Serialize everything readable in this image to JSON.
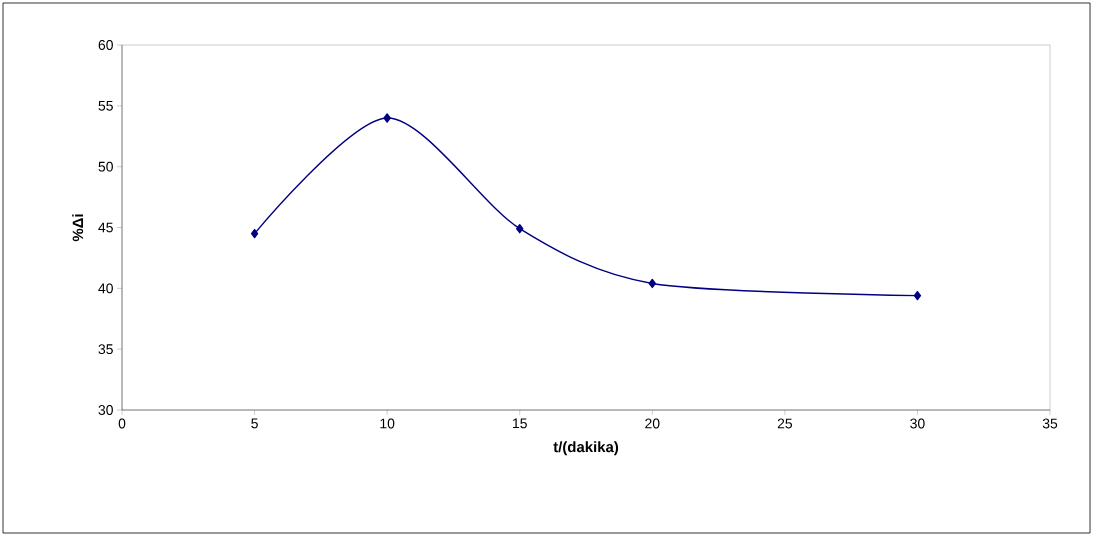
{
  "chart_data": {
    "type": "line",
    "xlabel": "t/(dakika)",
    "ylabel": "%Δi",
    "x": [
      5,
      10,
      15,
      20,
      30
    ],
    "series": [
      {
        "color": "#000080",
        "values": [
          44.5,
          54,
          44.9,
          40.4,
          39.4
        ]
      }
    ],
    "xlim": [
      0,
      35
    ],
    "xticks": [
      0,
      5,
      10,
      15,
      20,
      25,
      30,
      35
    ],
    "ylim": [
      30,
      60
    ],
    "yticks": [
      30,
      35,
      40,
      45,
      50,
      55,
      60
    ],
    "marker": "diamond",
    "line_style": "solid"
  }
}
